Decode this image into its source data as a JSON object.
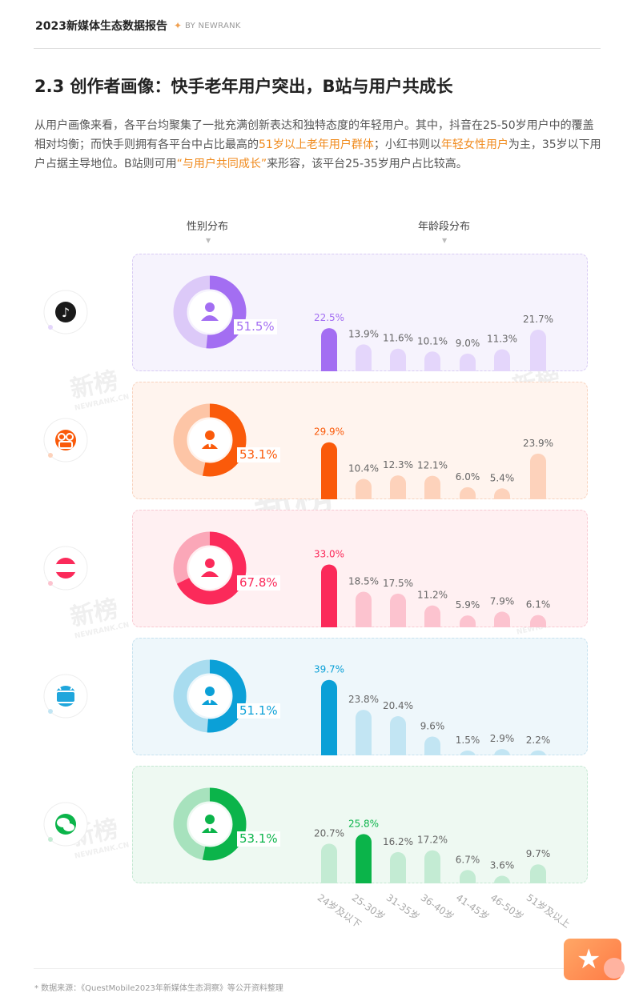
{
  "header": {
    "title": "2023新媒体生态数据报告",
    "by": "BY NEWRANK"
  },
  "section_title": "2.3 创作者画像：快手老年用户突出，B站与用户共成长",
  "paragraph": {
    "p1": "从用户画像来看，各平台均聚集了一批充满创新表达和独特态度的年轻用户。其中，抖音在25-50岁用户中的覆盖相对均衡；而快手则拥有各平台中占比最高的",
    "h1": "51岁以上老年用户群体",
    "p2": "；小红书则以",
    "h2": "年轻女性用户",
    "p3": "为主，35岁以下用户占据主导地位。B站则可用",
    "h3": "“与用户共同成长”",
    "p4": "来形容，该平台25-35岁用户占比较高。"
  },
  "col_labels": {
    "gender": "性别分布",
    "age": "年龄段分布"
  },
  "watermark": {
    "cn": "新榜",
    "en": "NEWRANK.CN"
  },
  "chart_data": {
    "type": "bar",
    "categories": [
      "24岁及以下",
      "25-30岁",
      "31-35岁",
      "36-40岁",
      "41-45岁",
      "46-50岁",
      "51岁及以上"
    ],
    "series": [
      {
        "icon": "douyin-icon",
        "gender_pct": 51.5,
        "gender_label": "51.5%",
        "gender_icon": "female-user-icon",
        "values": [
          22.5,
          13.9,
          11.6,
          10.1,
          9.0,
          11.3,
          21.7
        ],
        "labels": [
          "22.5%",
          "13.9%",
          "11.6%",
          "10.1%",
          "9.0%",
          "11.3%",
          "21.7%"
        ],
        "highlight": 0,
        "colors": {
          "main": "#a36ef2",
          "light": "#e4d6fb",
          "donut_bg": "#dcc9f8",
          "panel_bg": "#f6f3fd",
          "panel_border": "#d8cbf4",
          "icon_bg": "#1a1a1a"
        }
      },
      {
        "icon": "kuaishou-icon",
        "gender_pct": 53.1,
        "gender_label": "53.1%",
        "gender_icon": "male-user-icon",
        "values": [
          29.9,
          10.4,
          12.3,
          12.1,
          6.0,
          5.4,
          23.9
        ],
        "labels": [
          "29.9%",
          "10.4%",
          "12.3%",
          "12.1%",
          "6.0%",
          "5.4%",
          "23.9%"
        ],
        "highlight": 0,
        "colors": {
          "main": "#fa5a0a",
          "light": "#fdd2bb",
          "donut_bg": "#fdc5a6",
          "panel_bg": "#fff4ee",
          "panel_border": "#f8d2bd",
          "icon_bg": "#fa5a0a"
        }
      },
      {
        "icon": "xiaohongshu-icon",
        "gender_pct": 67.8,
        "gender_label": "67.8%",
        "gender_icon": "female-user-icon",
        "values": [
          33.0,
          18.5,
          17.5,
          11.2,
          5.9,
          7.9,
          6.1
        ],
        "labels": [
          "33.0%",
          "18.5%",
          "17.5%",
          "11.2%",
          "5.9%",
          "7.9%",
          "6.1%"
        ],
        "highlight": 0,
        "colors": {
          "main": "#fb2a5a",
          "light": "#fcc3cf",
          "donut_bg": "#fba7b8",
          "panel_bg": "#fff0f2",
          "panel_border": "#f8c9d2",
          "icon_bg": "#fb2a5a"
        }
      },
      {
        "icon": "bilibili-icon",
        "gender_pct": 51.1,
        "gender_label": "51.1%",
        "gender_icon": "male-user-icon",
        "values": [
          39.7,
          23.8,
          20.4,
          9.6,
          1.5,
          2.9,
          2.2
        ],
        "labels": [
          "39.7%",
          "23.8%",
          "20.4%",
          "9.6%",
          "1.5%",
          "2.9%",
          "2.2%"
        ],
        "highlight": 0,
        "colors": {
          "main": "#0ba0d7",
          "light": "#c2e5f3",
          "donut_bg": "#a8dcef",
          "panel_bg": "#eef7fb",
          "panel_border": "#c6e2ef",
          "icon_bg": "#1fa6dc"
        }
      },
      {
        "icon": "wechat-icon",
        "gender_pct": 53.1,
        "gender_label": "53.1%",
        "gender_icon": "male-user-icon",
        "values": [
          20.7,
          25.8,
          16.2,
          17.2,
          6.7,
          3.6,
          9.7
        ],
        "labels": [
          "20.7%",
          "25.8%",
          "16.2%",
          "17.2%",
          "6.7%",
          "3.6%",
          "9.7%"
        ],
        "highlight": 1,
        "colors": {
          "main": "#0bb44a",
          "light": "#c3ebd3",
          "donut_bg": "#a7e2bd",
          "panel_bg": "#eef9f2",
          "panel_border": "#c4e8d2",
          "icon_bg": "#0bb44a"
        }
      }
    ]
  },
  "footnote": "* 数据来源：《QuestMobile2023年新媒体生态洞察》等公开资料整理"
}
